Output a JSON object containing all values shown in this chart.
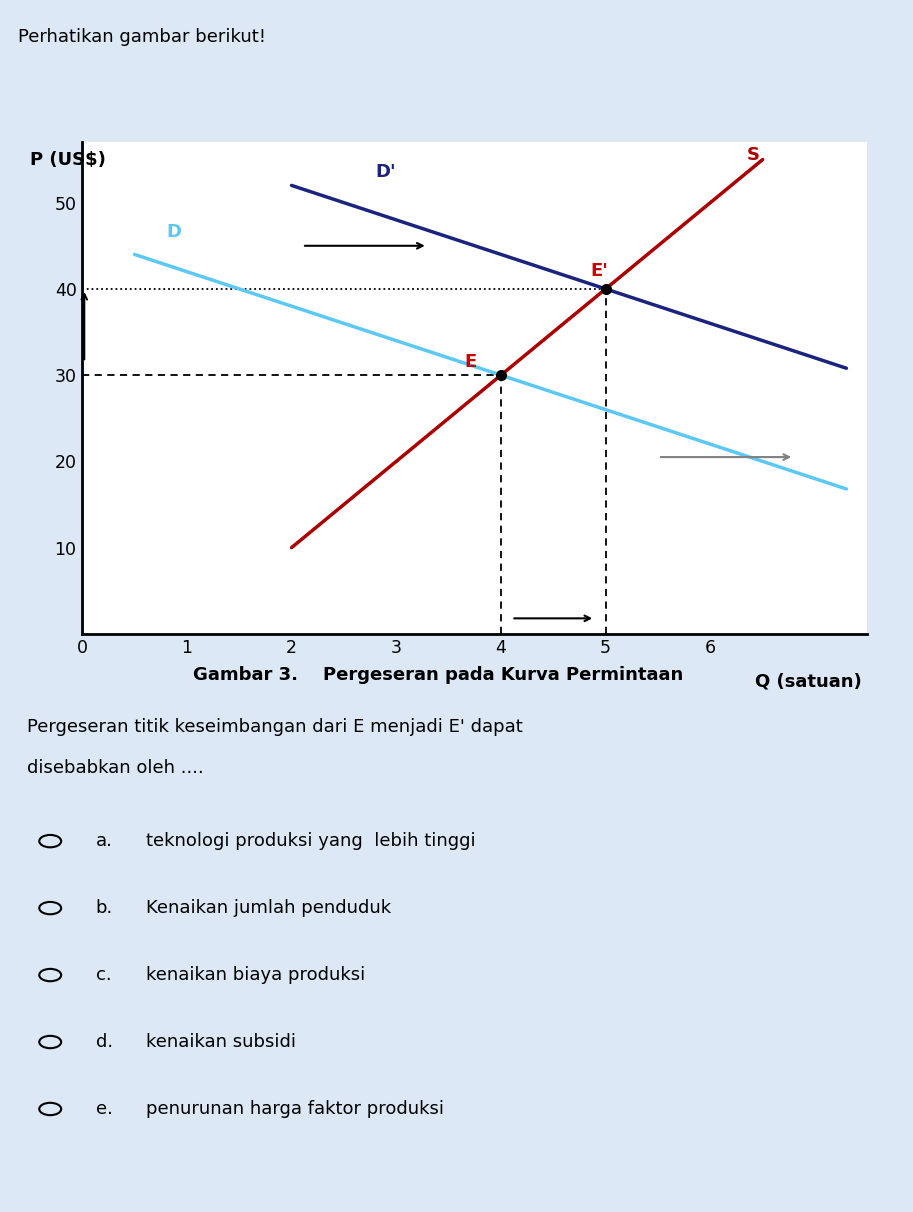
{
  "title_top": "Perhatikan gambar berikut!",
  "chart_caption": "Gambar 3.    Pergeseran pada Kurva Permintaan",
  "ylabel": "P (US$)",
  "xlabel": "Q (satuan)",
  "xlim": [
    0,
    7.5
  ],
  "ylim": [
    0,
    57
  ],
  "xticks": [
    0,
    1,
    2,
    3,
    4,
    5,
    6
  ],
  "yticks": [
    10,
    20,
    30,
    40,
    50
  ],
  "supply_color": "#aa0000",
  "demand_D_color": "#5bc8f5",
  "demand_D2_color": "#1a237e",
  "E_label_color": "#cc0000",
  "E_point": [
    4,
    30
  ],
  "E2_point": [
    5,
    40
  ],
  "question_text1": "Pergeseran titik keseimbangan dari E menjadi E' dapat",
  "question_text2": "disebabkan oleh ....",
  "options": [
    [
      "a.",
      "teknologi produksi yang  lebih tinggi"
    ],
    [
      "b.",
      "Kenaikan jumlah penduduk"
    ],
    [
      "c.",
      "kenaikan biaya produksi"
    ],
    [
      "d.",
      "kenaikan subsidi"
    ],
    [
      "e.",
      "penurunan harga faktor produksi"
    ]
  ],
  "white_bg": "#ffffff",
  "light_bg": "#dce8f5",
  "header_bg": "#d0dfe8"
}
